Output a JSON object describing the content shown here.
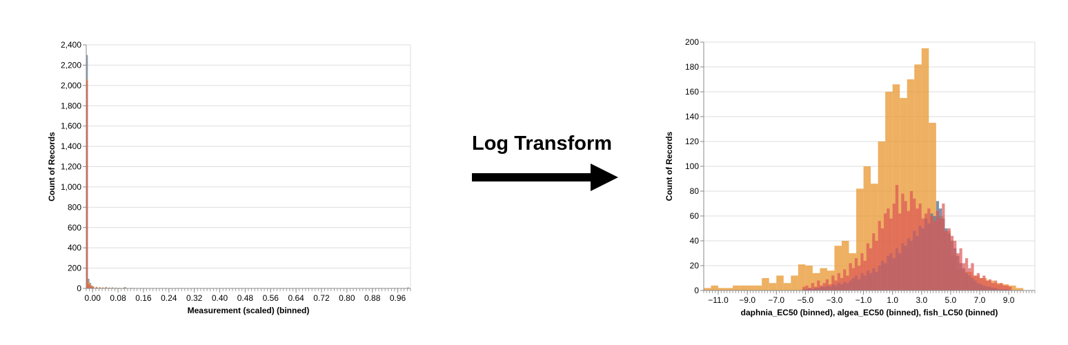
{
  "caption": "Log Transform",
  "arrow_icon": "right-arrow-icon",
  "colors": {
    "orange": "#e8952e",
    "red": "#dd5555",
    "steel": "#6d7f96",
    "purple": "#a85f75",
    "grid": "#dddddd",
    "axis": "#888888"
  },
  "chart_data": [
    {
      "type": "bar",
      "title": "",
      "xlabel": "Measurement (scaled) (binned)",
      "ylabel": "Count of Records",
      "xlim": [
        -0.02,
        1.0
      ],
      "ylim": [
        0,
        2400
      ],
      "grid": true,
      "x_ticks": [
        {
          "value": 0.0,
          "label": "0.00"
        },
        {
          "value": 0.08,
          "label": "0.08"
        },
        {
          "value": 0.16,
          "label": "0.16"
        },
        {
          "value": 0.24,
          "label": "0.24"
        },
        {
          "value": 0.32,
          "label": "0.32"
        },
        {
          "value": 0.4,
          "label": "0.40"
        },
        {
          "value": 0.48,
          "label": "0.48"
        },
        {
          "value": 0.56,
          "label": "0.56"
        },
        {
          "value": 0.64,
          "label": "0.64"
        },
        {
          "value": 0.72,
          "label": "0.72"
        },
        {
          "value": 0.8,
          "label": "0.80"
        },
        {
          "value": 0.88,
          "label": "0.88"
        },
        {
          "value": 0.96,
          "label": "0.96"
        }
      ],
      "y_ticks": [
        {
          "value": 0,
          "label": "0"
        },
        {
          "value": 200,
          "label": "200"
        },
        {
          "value": 400,
          "label": "400"
        },
        {
          "value": 600,
          "label": "600"
        },
        {
          "value": 800,
          "label": "800"
        },
        {
          "value": 1000,
          "label": "1,000"
        },
        {
          "value": 1200,
          "label": "1,200"
        },
        {
          "value": 1400,
          "label": "1,400"
        },
        {
          "value": 1600,
          "label": "1,600"
        },
        {
          "value": 1800,
          "label": "1,800"
        },
        {
          "value": 2000,
          "label": "2,000"
        },
        {
          "value": 2200,
          "label": "2,200"
        },
        {
          "value": 2400,
          "label": "2,400"
        }
      ],
      "bin_width": 0.005,
      "series": [
        {
          "color": "#6d7f96",
          "opacity": 0.8,
          "bins": [
            [
              -0.02,
              2300
            ],
            [
              -0.015,
              95
            ],
            [
              -0.01,
              55
            ],
            [
              -0.005,
              30
            ],
            [
              0.0,
              20
            ],
            [
              0.01,
              15
            ],
            [
              0.02,
              12
            ],
            [
              0.03,
              10
            ],
            [
              0.04,
              14
            ],
            [
              0.05,
              9
            ],
            [
              0.06,
              10
            ],
            [
              0.07,
              8
            ],
            [
              0.08,
              6
            ],
            [
              0.095,
              7
            ],
            [
              0.1,
              14
            ],
            [
              0.12,
              5
            ],
            [
              0.15,
              4
            ],
            [
              0.2,
              3
            ],
            [
              0.3,
              2
            ],
            [
              0.4,
              2
            ],
            [
              0.5,
              2
            ],
            [
              0.6,
              1
            ],
            [
              0.7,
              2
            ],
            [
              0.8,
              1
            ],
            [
              0.9,
              1
            ],
            [
              0.99,
              10
            ]
          ]
        },
        {
          "color": "#e8952e",
          "opacity": 0.8,
          "bins": [
            [
              -0.02,
              2060
            ],
            [
              -0.015,
              65
            ],
            [
              -0.01,
              40
            ],
            [
              -0.005,
              25
            ],
            [
              0.0,
              18
            ],
            [
              0.01,
              14
            ],
            [
              0.02,
              10
            ],
            [
              0.03,
              8
            ],
            [
              0.04,
              12
            ],
            [
              0.05,
              7
            ],
            [
              0.06,
              8
            ],
            [
              0.07,
              6
            ],
            [
              0.08,
              5
            ],
            [
              0.1,
              8
            ],
            [
              0.12,
              4
            ],
            [
              0.15,
              3
            ],
            [
              0.2,
              3
            ],
            [
              0.3,
              2
            ],
            [
              0.4,
              2
            ],
            [
              0.5,
              1
            ],
            [
              0.6,
              1
            ],
            [
              0.7,
              1
            ],
            [
              0.8,
              1
            ],
            [
              0.9,
              1
            ],
            [
              0.99,
              6
            ]
          ]
        },
        {
          "color": "#dd5555",
          "opacity": 0.7,
          "bins": [
            [
              -0.02,
              2050
            ],
            [
              -0.015,
              40
            ],
            [
              -0.01,
              25
            ],
            [
              -0.005,
              15
            ],
            [
              0.0,
              10
            ],
            [
              0.01,
              8
            ],
            [
              0.02,
              6
            ],
            [
              0.04,
              6
            ],
            [
              0.06,
              4
            ],
            [
              0.08,
              3
            ],
            [
              0.1,
              4
            ],
            [
              0.2,
              2
            ],
            [
              0.4,
              1
            ],
            [
              0.6,
              1
            ],
            [
              0.8,
              1
            ],
            [
              0.99,
              3
            ]
          ]
        }
      ]
    },
    {
      "type": "bar",
      "title": "",
      "xlabel": "daphnia_EC50 (binned), algea_EC50 (binned), fish_LC50 (binned)",
      "ylabel": "Count of Records",
      "xlim": [
        -12.0,
        10.8
      ],
      "ylim": [
        0,
        200
      ],
      "grid": true,
      "x_ticks": [
        {
          "value": -11,
          "label": "−11.0"
        },
        {
          "value": -9,
          "label": "−9.0"
        },
        {
          "value": -7,
          "label": "−7.0"
        },
        {
          "value": -5,
          "label": "−5.0"
        },
        {
          "value": -3,
          "label": "−3.0"
        },
        {
          "value": -1,
          "label": "−1.0"
        },
        {
          "value": 1,
          "label": "1.0"
        },
        {
          "value": 3,
          "label": "3.0"
        },
        {
          "value": 5,
          "label": "5.0"
        },
        {
          "value": 7,
          "label": "7.0"
        },
        {
          "value": 9,
          "label": "9.0"
        }
      ],
      "y_ticks": [
        {
          "value": 0,
          "label": "0"
        },
        {
          "value": 20,
          "label": "20"
        },
        {
          "value": 40,
          "label": "40"
        },
        {
          "value": 60,
          "label": "60"
        },
        {
          "value": 80,
          "label": "80"
        },
        {
          "value": 100,
          "label": "100"
        },
        {
          "value": 120,
          "label": "120"
        },
        {
          "value": 140,
          "label": "140"
        },
        {
          "value": 160,
          "label": "160"
        },
        {
          "value": 180,
          "label": "180"
        },
        {
          "value": 200,
          "label": "200"
        }
      ],
      "series": [
        {
          "color": "#e8952e",
          "opacity": 0.75,
          "bin_start": -12.0,
          "bin_width": 0.5,
          "values": [
            2,
            4,
            2,
            2,
            4,
            4,
            4,
            4,
            10,
            6,
            12,
            6,
            12,
            21,
            20,
            14,
            18,
            16,
            36,
            40,
            30,
            82,
            100,
            86,
            120,
            160,
            166,
            155,
            170,
            182,
            195,
            135,
            60,
            48,
            28,
            17,
            15,
            12,
            10,
            8,
            6,
            5,
            4,
            2,
            0,
            0
          ]
        },
        {
          "color": "#6d7f96",
          "opacity": 0.85,
          "bin_start": -5.2,
          "bin_width": 0.2,
          "values": [
            1,
            1,
            2,
            1,
            2,
            2,
            3,
            3,
            4,
            3,
            5,
            4,
            6,
            5,
            7,
            6,
            8,
            10,
            12,
            9,
            14,
            12,
            16,
            14,
            18,
            15,
            20,
            24,
            22,
            28,
            30,
            26,
            34,
            30,
            38,
            36,
            42,
            40,
            48,
            44,
            52,
            50,
            58,
            54,
            62,
            60,
            72,
            66,
            58,
            50,
            46,
            40,
            34,
            28,
            22,
            18,
            14,
            12,
            10,
            8,
            6,
            5,
            4,
            3,
            3,
            2,
            2,
            1,
            1,
            1,
            1,
            0
          ]
        },
        {
          "color": "#dd5555",
          "opacity": 0.7,
          "bin_start": -5.2,
          "bin_width": 0.2,
          "values": [
            3,
            4,
            2,
            6,
            3,
            8,
            4,
            6,
            9,
            5,
            12,
            8,
            14,
            10,
            17,
            12,
            22,
            18,
            26,
            20,
            30,
            24,
            38,
            34,
            46,
            40,
            56,
            50,
            62,
            66,
            58,
            70,
            85,
            62,
            78,
            72,
            64,
            80,
            74,
            66,
            70,
            58,
            62,
            66,
            60,
            56,
            64,
            58,
            70,
            48,
            50,
            44,
            40,
            30,
            34,
            22,
            26,
            18,
            22,
            12,
            14,
            10,
            12,
            8,
            9,
            6,
            8,
            5,
            6,
            4,
            4,
            3
          ]
        }
      ]
    }
  ]
}
